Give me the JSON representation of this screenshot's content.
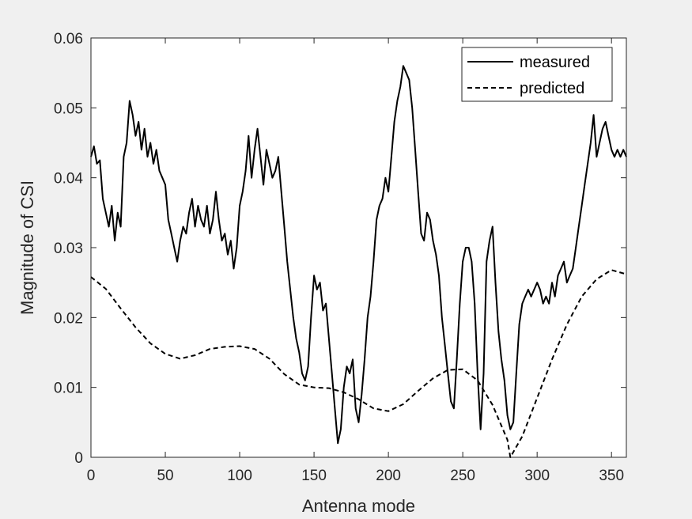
{
  "chart_data": {
    "type": "line",
    "xlabel": "Antenna mode",
    "ylabel": "Magnitude of CSI",
    "xlim": [
      0,
      360
    ],
    "ylim": [
      0,
      0.06
    ],
    "xticks": [
      0,
      50,
      100,
      150,
      200,
      250,
      300,
      350
    ],
    "xtick_labels": [
      "0",
      "50",
      "100",
      "150",
      "200",
      "250",
      "300",
      "350"
    ],
    "yticks": [
      0,
      0.01,
      0.02,
      0.03,
      0.04,
      0.05,
      0.06
    ],
    "ytick_labels": [
      "0",
      "0.01",
      "0.02",
      "0.03",
      "0.04",
      "0.05",
      "0.06"
    ],
    "grid": false,
    "legend_position": "top-right",
    "series": [
      {
        "name": "measured",
        "style": "solid",
        "color": "#000000",
        "x": [
          0,
          2,
          4,
          6,
          8,
          10,
          12,
          14,
          16,
          18,
          20,
          22,
          24,
          26,
          28,
          30,
          32,
          34,
          36,
          38,
          40,
          42,
          44,
          46,
          48,
          50,
          52,
          54,
          56,
          58,
          60,
          62,
          64,
          66,
          68,
          70,
          72,
          74,
          76,
          78,
          80,
          82,
          84,
          86,
          88,
          90,
          92,
          94,
          96,
          98,
          100,
          102,
          104,
          106,
          108,
          110,
          112,
          114,
          116,
          118,
          120,
          122,
          124,
          126,
          128,
          130,
          132,
          134,
          136,
          138,
          140,
          142,
          144,
          146,
          148,
          150,
          152,
          154,
          156,
          158,
          160,
          162,
          164,
          166,
          168,
          170,
          172,
          174,
          176,
          178,
          180,
          182,
          184,
          186,
          188,
          190,
          192,
          194,
          196,
          198,
          200,
          202,
          204,
          206,
          208,
          210,
          212,
          214,
          216,
          218,
          220,
          222,
          224,
          226,
          228,
          230,
          232,
          234,
          236,
          238,
          240,
          242,
          244,
          246,
          248,
          250,
          252,
          254,
          256,
          258,
          260,
          262,
          264,
          266,
          268,
          270,
          272,
          274,
          276,
          278,
          280,
          282,
          284,
          286,
          288,
          290,
          292,
          294,
          296,
          298,
          300,
          302,
          304,
          306,
          308,
          310,
          312,
          314,
          316,
          318,
          320,
          322,
          324,
          326,
          328,
          330,
          332,
          334,
          336,
          338,
          340,
          342,
          344,
          346,
          348,
          350,
          352,
          354,
          356,
          358,
          360
        ],
        "values": [
          0.043,
          0.0445,
          0.042,
          0.0425,
          0.037,
          0.035,
          0.033,
          0.036,
          0.031,
          0.035,
          0.033,
          0.043,
          0.045,
          0.051,
          0.049,
          0.046,
          0.048,
          0.044,
          0.047,
          0.043,
          0.045,
          0.042,
          0.044,
          0.041,
          0.04,
          0.039,
          0.034,
          0.032,
          0.03,
          0.028,
          0.031,
          0.033,
          0.032,
          0.035,
          0.037,
          0.033,
          0.036,
          0.034,
          0.033,
          0.036,
          0.032,
          0.034,
          0.038,
          0.034,
          0.031,
          0.032,
          0.029,
          0.031,
          0.027,
          0.03,
          0.036,
          0.038,
          0.041,
          0.046,
          0.04,
          0.044,
          0.047,
          0.043,
          0.039,
          0.044,
          0.042,
          0.04,
          0.041,
          0.043,
          0.038,
          0.033,
          0.028,
          0.024,
          0.02,
          0.017,
          0.015,
          0.012,
          0.011,
          0.013,
          0.02,
          0.026,
          0.024,
          0.025,
          0.021,
          0.022,
          0.017,
          0.012,
          0.007,
          0.002,
          0.004,
          0.01,
          0.013,
          0.012,
          0.014,
          0.007,
          0.005,
          0.009,
          0.014,
          0.02,
          0.023,
          0.028,
          0.034,
          0.036,
          0.037,
          0.04,
          0.038,
          0.043,
          0.048,
          0.051,
          0.053,
          0.056,
          0.055,
          0.054,
          0.05,
          0.044,
          0.038,
          0.032,
          0.031,
          0.035,
          0.034,
          0.031,
          0.029,
          0.026,
          0.02,
          0.016,
          0.012,
          0.008,
          0.007,
          0.014,
          0.022,
          0.028,
          0.03,
          0.03,
          0.028,
          0.022,
          0.012,
          0.004,
          0.012,
          0.028,
          0.031,
          0.033,
          0.025,
          0.018,
          0.014,
          0.011,
          0.006,
          0.004,
          0.005,
          0.012,
          0.019,
          0.022,
          0.023,
          0.024,
          0.023,
          0.024,
          0.025,
          0.024,
          0.022,
          0.023,
          0.022,
          0.025,
          0.023,
          0.026,
          0.027,
          0.028,
          0.025,
          0.026,
          0.027,
          0.03,
          0.033,
          0.036,
          0.039,
          0.042,
          0.045,
          0.049,
          0.043,
          0.045,
          0.047,
          0.048,
          0.046,
          0.044,
          0.043,
          0.044,
          0.043,
          0.044,
          0.043
        ]
      },
      {
        "name": "predicted",
        "style": "dashed",
        "color": "#000000",
        "x": [
          0,
          10,
          20,
          30,
          40,
          50,
          60,
          70,
          80,
          90,
          100,
          110,
          120,
          130,
          140,
          150,
          160,
          170,
          180,
          190,
          200,
          210,
          220,
          230,
          240,
          250,
          260,
          270,
          280,
          282,
          290,
          300,
          310,
          320,
          330,
          340,
          350,
          360
        ],
        "values": [
          0.0258,
          0.0241,
          0.0213,
          0.0186,
          0.0163,
          0.0148,
          0.0141,
          0.0146,
          0.0155,
          0.0158,
          0.0159,
          0.0155,
          0.0141,
          0.0119,
          0.0104,
          0.01,
          0.0099,
          0.0093,
          0.0083,
          0.007,
          0.0066,
          0.0076,
          0.0095,
          0.0113,
          0.0125,
          0.0126,
          0.011,
          0.0075,
          0.0025,
          0.0,
          0.003,
          0.0085,
          0.014,
          0.019,
          0.023,
          0.0255,
          0.0268,
          0.0262
        ]
      }
    ]
  }
}
